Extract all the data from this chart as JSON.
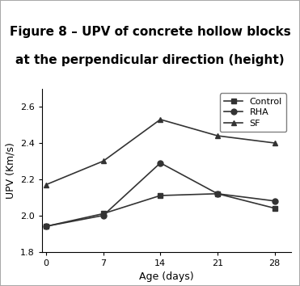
{
  "title_line1": "Figure 8 – UPV of concrete hollow blocks",
  "title_line2": "at the perpendicular direction (height)",
  "xlabel": "Age (days)",
  "ylabel": "UPV (Km/s)",
  "x": [
    0,
    7,
    14,
    21,
    28
  ],
  "control": [
    1.94,
    2.01,
    2.11,
    2.12,
    2.04
  ],
  "rha": [
    1.94,
    2.0,
    2.29,
    2.12,
    2.08
  ],
  "sf": [
    2.17,
    2.3,
    2.53,
    2.44,
    2.4
  ],
  "ylim": [
    1.8,
    2.7
  ],
  "xlim": [
    -0.5,
    30
  ],
  "xticks": [
    0,
    7,
    14,
    21,
    28
  ],
  "yticks": [
    1.8,
    2.0,
    2.2,
    2.4,
    2.6
  ],
  "header_bg": "#F5A623",
  "plot_bg": "#ffffff",
  "line_color": "#333333",
  "legend_labels": [
    "Control",
    "RHA",
    "SF"
  ],
  "control_marker": "s",
  "rha_marker": "o",
  "sf_marker": "^",
  "title_fontsize": 11,
  "axis_label_fontsize": 9,
  "tick_fontsize": 8,
  "legend_fontsize": 8
}
